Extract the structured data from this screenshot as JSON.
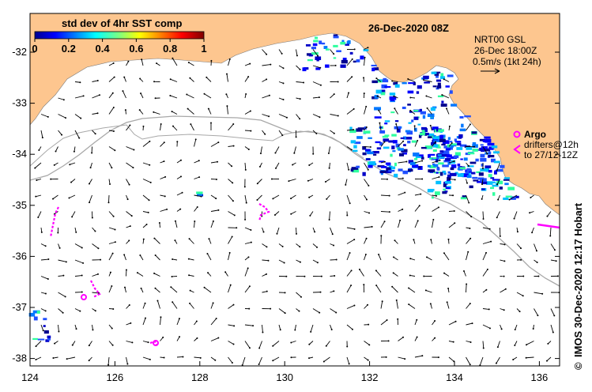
{
  "title": "26-Dec-2020 08Z",
  "colorbar": {
    "label": "std dev of 4hr SST comp",
    "ticks": [
      "0",
      "0.2",
      "0.4",
      "0.6",
      "0.8",
      "1"
    ]
  },
  "info_lines": [
    "NRT00 GSL",
    "26-Dec 18:00Z",
    "0.5m/s (1kt 24h)"
  ],
  "legend": {
    "argo": "Argo",
    "drifters": "drifters@12h",
    "drifters_to": "to 27/12-12Z"
  },
  "credit": "IMOS 30-Dec-2020 12:17 Hobart",
  "copyright": "©",
  "lat_ticks": [
    "-32",
    "-33",
    "-34",
    "-35",
    "-36",
    "-37",
    "-38"
  ],
  "lon_ticks": [
    "124",
    "126",
    "128",
    "130",
    "132",
    "134",
    "136"
  ],
  "colors": {
    "land": "#fdc68f",
    "shelf": "#a0a0a0",
    "argo": "#ff00ff",
    "sst_low": "#1f3fbf",
    "sst_high": "#ffff00"
  }
}
